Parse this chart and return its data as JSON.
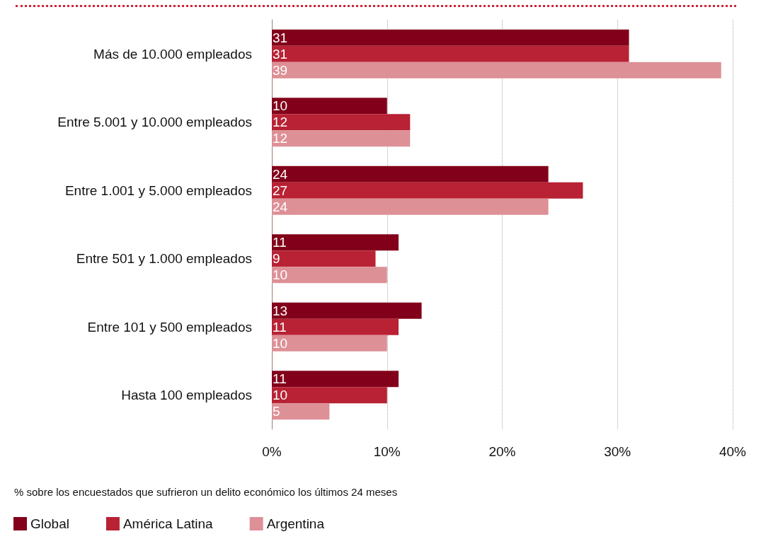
{
  "chart_data": {
    "type": "bar",
    "orientation": "horizontal",
    "categories": [
      "Más de 10.000 empleados",
      "Entre 5.001 y 10.000 empleados",
      "Entre 1.001 y 5.000 empleados",
      "Entre 501 y 1.000 empleados",
      "Entre 101 y 500 empleados",
      "Hasta 100 empleados"
    ],
    "series": [
      {
        "name": "Global",
        "color": "#82001a",
        "values": [
          31,
          10,
          24,
          11,
          13,
          11
        ]
      },
      {
        "name": "América Latina",
        "color": "#b82234",
        "values": [
          31,
          12,
          27,
          9,
          11,
          10
        ]
      },
      {
        "name": "Argentina",
        "color": "#dd9096",
        "values": [
          39,
          12,
          24,
          10,
          10,
          5
        ]
      }
    ],
    "xlim": [
      0,
      40
    ],
    "xticks": [
      {
        "value": 0,
        "label": "0%"
      },
      {
        "value": 10,
        "label": "10%"
      },
      {
        "value": 20,
        "label": "20%"
      },
      {
        "value": 30,
        "label": "30%"
      },
      {
        "value": 40,
        "label": "40%"
      }
    ],
    "grid": "x",
    "data_labels": true,
    "legend": "bottom left",
    "annotations": [
      "% sobre los encuestados que sufrieron un delito económico los últimos 24 meses"
    ]
  }
}
